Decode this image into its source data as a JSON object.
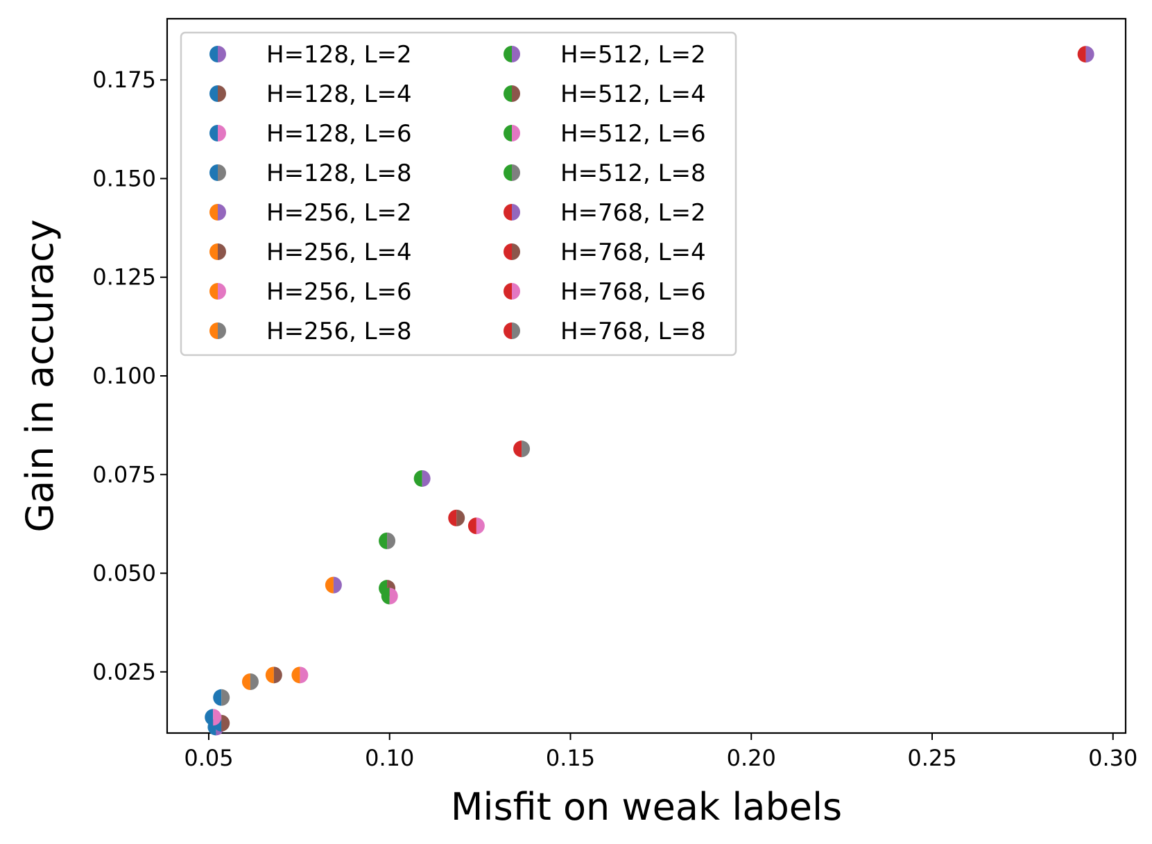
{
  "chart_data": {
    "type": "scatter",
    "title": "",
    "xlabel": "Misfit on weak labels",
    "ylabel": "Gain in accuracy",
    "xlim": [
      0.0385,
      0.3035
    ],
    "ylim": [
      0.0095,
      0.1905
    ],
    "xticks": [
      0.05,
      0.1,
      0.15,
      0.2,
      0.25,
      0.3
    ],
    "xtick_labels": [
      "0.05",
      "0.10",
      "0.15",
      "0.20",
      "0.25",
      "0.30"
    ],
    "yticks": [
      0.025,
      0.05,
      0.075,
      0.1,
      0.125,
      0.15,
      0.175
    ],
    "ytick_labels": [
      "0.025",
      "0.050",
      "0.075",
      "0.100",
      "0.125",
      "0.150",
      "0.175"
    ],
    "grid": false,
    "legend_position": "top-left",
    "legend_columns": 2,
    "hidden_colors": {
      "128": "#1f77b4",
      "256": "#ff7f0e",
      "512": "#2ca02c",
      "768": "#d62728"
    },
    "layer_colors": {
      "2": "#9467bd",
      "4": "#8c564b",
      "6": "#e377c2",
      "8": "#7f7f7f"
    },
    "series": [
      {
        "name": "H=128, L=2",
        "hidden": "128",
        "layers": "2",
        "x": 0.052,
        "y": 0.011
      },
      {
        "name": "H=128, L=4",
        "hidden": "128",
        "layers": "4",
        "x": 0.0535,
        "y": 0.012
      },
      {
        "name": "H=128, L=6",
        "hidden": "128",
        "layers": "6",
        "x": 0.0512,
        "y": 0.0135
      },
      {
        "name": "H=128, L=8",
        "hidden": "128",
        "layers": "8",
        "x": 0.0535,
        "y": 0.0185
      },
      {
        "name": "H=256, L=2",
        "hidden": "256",
        "layers": "2",
        "x": 0.0845,
        "y": 0.047
      },
      {
        "name": "H=256, L=4",
        "hidden": "256",
        "layers": "4",
        "x": 0.068,
        "y": 0.0242
      },
      {
        "name": "H=256, L=6",
        "hidden": "256",
        "layers": "6",
        "x": 0.0752,
        "y": 0.0242
      },
      {
        "name": "H=256, L=8",
        "hidden": "256",
        "layers": "8",
        "x": 0.0615,
        "y": 0.0225
      },
      {
        "name": "H=512, L=2",
        "hidden": "512",
        "layers": "2",
        "x": 0.109,
        "y": 0.074
      },
      {
        "name": "H=512, L=4",
        "hidden": "512",
        "layers": "4",
        "x": 0.0993,
        "y": 0.0462
      },
      {
        "name": "H=512, L=6",
        "hidden": "512",
        "layers": "6",
        "x": 0.1,
        "y": 0.0442
      },
      {
        "name": "H=512, L=8",
        "hidden": "512",
        "layers": "8",
        "x": 0.0993,
        "y": 0.0582
      },
      {
        "name": "H=768, L=2",
        "hidden": "768",
        "layers": "2",
        "x": 0.2925,
        "y": 0.1815
      },
      {
        "name": "H=768, L=4",
        "hidden": "768",
        "layers": "4",
        "x": 0.1185,
        "y": 0.064
      },
      {
        "name": "H=768, L=6",
        "hidden": "768",
        "layers": "6",
        "x": 0.124,
        "y": 0.062
      },
      {
        "name": "H=768, L=8",
        "hidden": "768",
        "layers": "8",
        "x": 0.1365,
        "y": 0.0815
      }
    ]
  }
}
